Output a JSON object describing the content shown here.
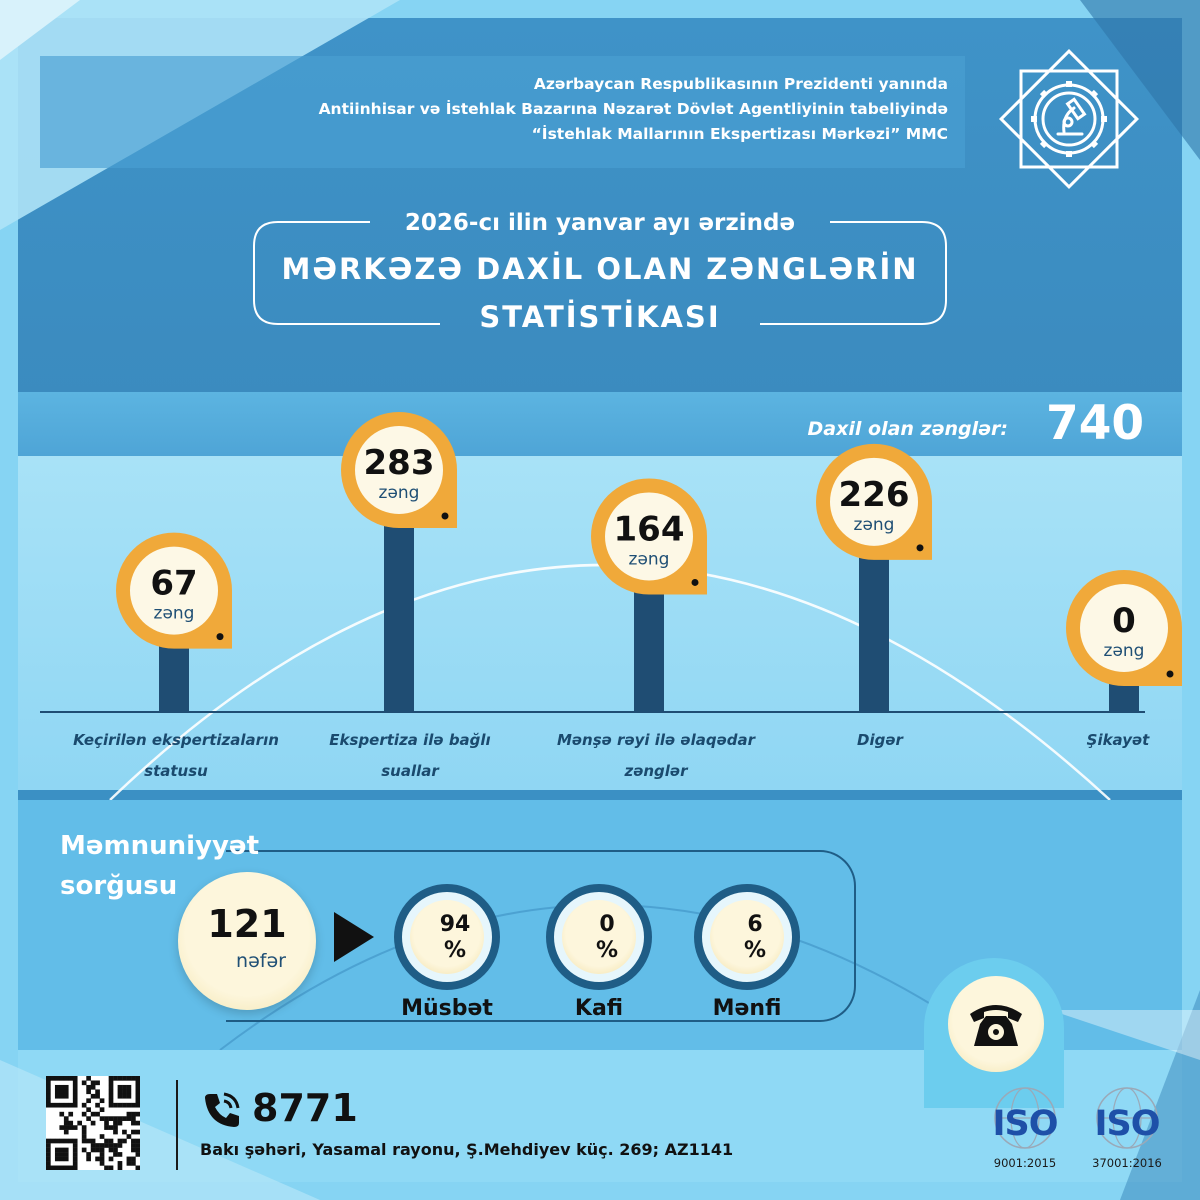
{
  "header": {
    "line1": "Azərbaycan Respublikasının Prezidenti yanında",
    "line2": "Antiinhisar və İstehlak Bazarına Nəzarət Dövlət Agentliyinin tabeliyində",
    "line3": "“İstehlak Mallarının Ekspertizası Mərkəzi” MMC"
  },
  "title": {
    "subtitle": "2026-cı ilin yanvar ayı ərzində",
    "line1": "MƏRKƏZƏ DAXİL OLAN ZƏNGLƏRİN",
    "line2": "STATİSTİKASI"
  },
  "total": {
    "label": "Daxil olan zənglər:",
    "value": "740"
  },
  "chart_data": {
    "type": "bar",
    "categories": [
      "Keçirilən ekspertizaların statusu",
      "Ekspertiza ilə bağlı suallar",
      "Mənşə rəyi ilə əlaqədar zənglər",
      "Digər",
      "Şikayət"
    ],
    "category_lines": [
      [
        "Keçirilən ekspertizaların",
        "statusu"
      ],
      [
        "Ekspertiza ilə bağlı",
        "suallar"
      ],
      [
        "Mənşə rəyi ilə əlaqədar",
        "zənglər"
      ],
      [
        "Digər"
      ],
      [
        "Şikayət"
      ]
    ],
    "values": [
      67,
      283,
      164,
      226,
      0
    ],
    "value_labels": [
      "67",
      "283",
      "164",
      "226",
      "0"
    ],
    "unit": "zəng",
    "title": "",
    "xlabel": "",
    "ylabel": ""
  },
  "survey": {
    "title_line1": "Məmnuniyyət",
    "title_line2": "sorğusu",
    "people_count": "121",
    "people_unit": "nəfər",
    "results": [
      {
        "value": "94",
        "sign": "%",
        "label": "Müsbət"
      },
      {
        "value": "0",
        "sign": "%",
        "label": "Kafi"
      },
      {
        "value": "6",
        "sign": "%",
        "label": "Mənfi"
      }
    ]
  },
  "footer": {
    "phone": "8771",
    "address": "Bakı şəhəri, Yasamal rayonu, Ş.Mehdiyev küç. 269; AZ1141"
  },
  "iso": [
    {
      "label": "ISO",
      "code": "9001:2015"
    },
    {
      "label": "ISO",
      "code": "37001:2016"
    }
  ],
  "icons": {
    "emblem": "octagram-gear-microscope-icon",
    "phone": "phone-icon",
    "call": "telephone-icon",
    "qr": "qr-code-icon"
  },
  "colors": {
    "header_band": "#3a8ec4",
    "chart_band": "#52a8d8",
    "bar": "#1f4d73",
    "pin": "#f0a93a",
    "sky": "#7fd0f2"
  }
}
